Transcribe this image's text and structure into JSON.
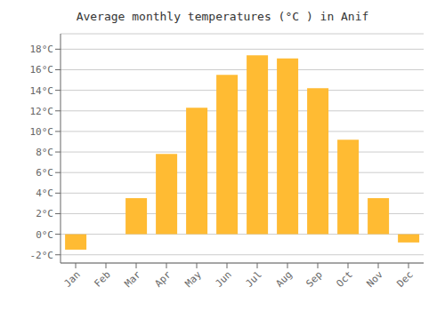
{
  "chart_data": {
    "type": "bar",
    "title": "Average monthly temperatures (°C ) in Anif",
    "categories": [
      "Jan",
      "Feb",
      "Mar",
      "Apr",
      "May",
      "Jun",
      "Jul",
      "Aug",
      "Sep",
      "Oct",
      "Nov",
      "Dec"
    ],
    "values": [
      -1.5,
      0.0,
      3.5,
      7.8,
      12.3,
      15.5,
      17.4,
      17.1,
      14.2,
      9.2,
      3.5,
      -0.8
    ],
    "color": "#FFBB33",
    "ylim": [
      -2.8,
      19.5
    ],
    "yticks": [
      {
        "value": -2,
        "label": "-2°C"
      },
      {
        "value": 0,
        "label": "0°C"
      },
      {
        "value": 2,
        "label": "2°C"
      },
      {
        "value": 4,
        "label": "4°C"
      },
      {
        "value": 6,
        "label": "6°C"
      },
      {
        "value": 8,
        "label": "8°C"
      },
      {
        "value": 10,
        "label": "10°C"
      },
      {
        "value": 12,
        "label": "12°C"
      },
      {
        "value": 14,
        "label": "14°C"
      },
      {
        "value": 16,
        "label": "16°C"
      },
      {
        "value": 18,
        "label": "18°C"
      }
    ],
    "grid": true
  }
}
